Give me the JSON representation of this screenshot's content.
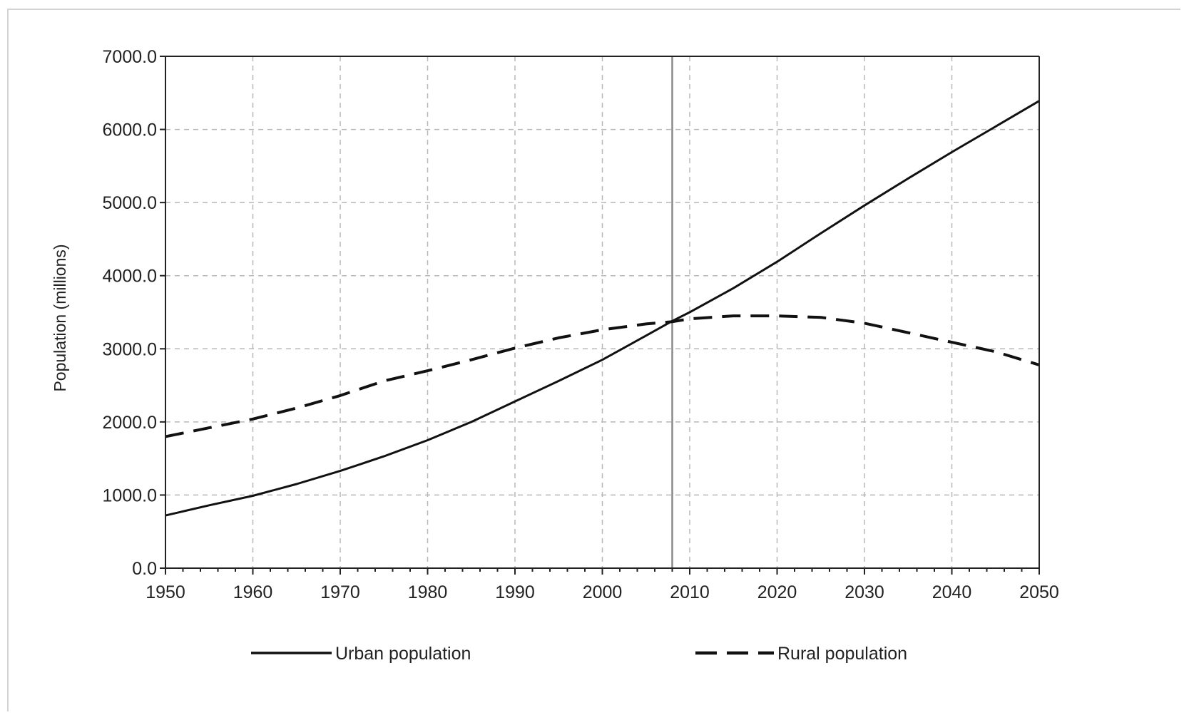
{
  "chart_data": {
    "type": "line",
    "title": "",
    "xlabel": "",
    "ylabel": "Population (millions)",
    "xlim": [
      1950,
      2050
    ],
    "ylim": [
      0,
      7000
    ],
    "x_ticks": [
      1950,
      1960,
      1970,
      1980,
      1990,
      2000,
      2010,
      2020,
      2030,
      2040,
      2050
    ],
    "y_ticks": [
      0,
      1000,
      2000,
      3000,
      4000,
      5000,
      6000,
      7000
    ],
    "y_tick_labels": [
      "0.0",
      "1000.0",
      "2000.0",
      "3000.0",
      "4000.0",
      "5000.0",
      "6000.0",
      "7000.0"
    ],
    "x_minor_step": 2,
    "grid": true,
    "reference_line_x": 2008,
    "legend_position": "bottom",
    "series": [
      {
        "name": "Urban population",
        "style": "solid",
        "color": "#111111",
        "x": [
          1950,
          1955,
          1960,
          1965,
          1970,
          1975,
          1980,
          1985,
          1990,
          1995,
          2000,
          2005,
          2008,
          2010,
          2015,
          2020,
          2025,
          2030,
          2035,
          2040,
          2045,
          2050
        ],
        "y": [
          720,
          860,
          990,
          1150,
          1330,
          1530,
          1750,
          2000,
          2280,
          2560,
          2850,
          3180,
          3380,
          3500,
          3830,
          4190,
          4580,
          4960,
          5330,
          5690,
          6040,
          6390
        ]
      },
      {
        "name": "Rural population",
        "style": "dashed",
        "color": "#111111",
        "x": [
          1950,
          1955,
          1960,
          1965,
          1970,
          1975,
          1980,
          1985,
          1990,
          1995,
          2000,
          2005,
          2008,
          2010,
          2015,
          2020,
          2025,
          2030,
          2035,
          2040,
          2045,
          2050
        ],
        "y": [
          1800,
          1920,
          2040,
          2190,
          2360,
          2560,
          2700,
          2850,
          3010,
          3150,
          3260,
          3340,
          3370,
          3410,
          3450,
          3450,
          3430,
          3350,
          3220,
          3090,
          2960,
          2780
        ]
      }
    ]
  }
}
